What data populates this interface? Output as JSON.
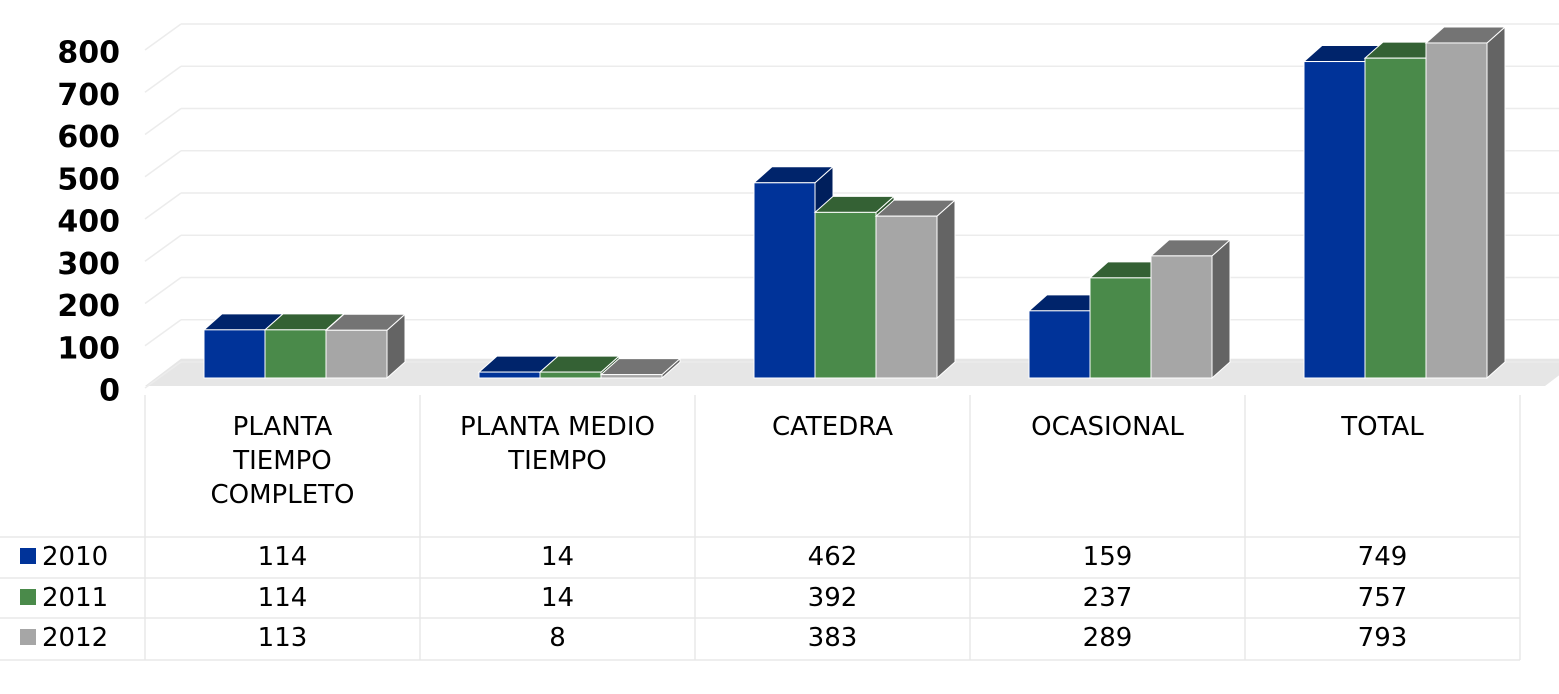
{
  "chart_data": {
    "type": "bar3d",
    "categories": [
      "PLANTA TIEMPO COMPLETO",
      "PLANTA MEDIO TIEMPO",
      "CATEDRA",
      "OCASIONAL",
      "TOTAL"
    ],
    "series": [
      {
        "name": "2010",
        "color": "#003399",
        "values": [
          114,
          14,
          462,
          159,
          749
        ]
      },
      {
        "name": "2011",
        "color": "#4a8a4a",
        "values": [
          114,
          14,
          392,
          237,
          757
        ]
      },
      {
        "name": "2012",
        "color": "#a6a6a6",
        "values": [
          113,
          8,
          383,
          289,
          793
        ]
      }
    ],
    "ylim": [
      0,
      800
    ],
    "yticks": [
      0,
      100,
      200,
      300,
      400,
      500,
      600,
      700,
      800
    ],
    "grid": true,
    "data_table": true
  }
}
